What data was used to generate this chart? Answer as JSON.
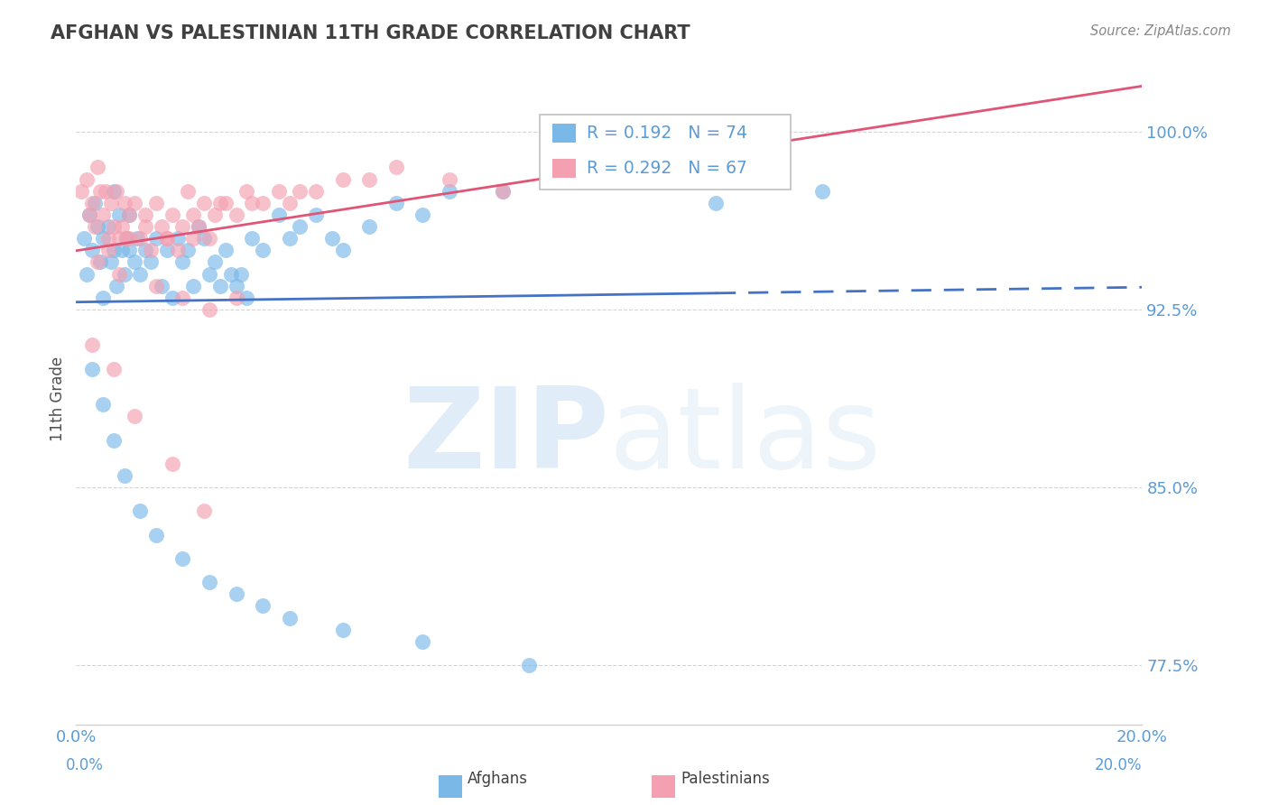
{
  "title": "AFGHAN VS PALESTINIAN 11TH GRADE CORRELATION CHART",
  "source_text": "Source: ZipAtlas.com",
  "ylabel": "11th Grade",
  "watermark_zip": "ZIP",
  "watermark_atlas": "atlas",
  "xlim": [
    0.0,
    20.0
  ],
  "ylim": [
    75.0,
    102.5
  ],
  "yticks": [
    77.5,
    85.0,
    92.5,
    100.0
  ],
  "ytick_labels": [
    "77.5%",
    "85.0%",
    "92.5%",
    "100.0%"
  ],
  "xticks": [
    0.0,
    5.0,
    10.0,
    15.0,
    20.0
  ],
  "xtick_labels": [
    "0.0%",
    "",
    "",
    "",
    "20.0%"
  ],
  "afghan_color": "#7ab8e8",
  "palestinian_color": "#f4a0b0",
  "afghan_line_color": "#4472c4",
  "palestinian_line_color": "#e05575",
  "afghan_R": 0.192,
  "afghan_N": 74,
  "palestinian_R": 0.292,
  "palestinian_N": 67,
  "title_color": "#404040",
  "axis_label_color": "#5b9bd5",
  "grid_color": "#d0d0d0",
  "legend_border_color": "#c0c0c0",
  "afghan_scatter_x": [
    0.15,
    0.2,
    0.25,
    0.3,
    0.35,
    0.4,
    0.45,
    0.5,
    0.5,
    0.6,
    0.65,
    0.7,
    0.7,
    0.75,
    0.8,
    0.85,
    0.9,
    0.95,
    1.0,
    1.0,
    1.1,
    1.15,
    1.2,
    1.3,
    1.4,
    1.5,
    1.6,
    1.7,
    1.8,
    1.9,
    2.0,
    2.1,
    2.2,
    2.3,
    2.4,
    2.5,
    2.6,
    2.7,
    2.8,
    2.9,
    3.0,
    3.1,
    3.2,
    3.3,
    3.5,
    3.8,
    4.0,
    4.2,
    4.5,
    4.8,
    5.0,
    5.5,
    6.0,
    6.5,
    7.0,
    8.0,
    9.0,
    10.0,
    12.0,
    14.0,
    0.3,
    0.5,
    0.7,
    0.9,
    1.2,
    1.5,
    2.0,
    2.5,
    3.0,
    3.5,
    4.0,
    5.0,
    6.5,
    8.5
  ],
  "afghan_scatter_y": [
    95.5,
    94.0,
    96.5,
    95.0,
    97.0,
    96.0,
    94.5,
    95.5,
    93.0,
    96.0,
    94.5,
    97.5,
    95.0,
    93.5,
    96.5,
    95.0,
    94.0,
    95.5,
    95.0,
    96.5,
    94.5,
    95.5,
    94.0,
    95.0,
    94.5,
    95.5,
    93.5,
    95.0,
    93.0,
    95.5,
    94.5,
    95.0,
    93.5,
    96.0,
    95.5,
    94.0,
    94.5,
    93.5,
    95.0,
    94.0,
    93.5,
    94.0,
    93.0,
    95.5,
    95.0,
    96.5,
    95.5,
    96.0,
    96.5,
    95.5,
    95.0,
    96.0,
    97.0,
    96.5,
    97.5,
    97.5,
    98.0,
    98.5,
    97.0,
    97.5,
    90.0,
    88.5,
    87.0,
    85.5,
    84.0,
    83.0,
    82.0,
    81.0,
    80.5,
    80.0,
    79.5,
    79.0,
    78.5,
    77.5
  ],
  "palestinian_scatter_x": [
    0.1,
    0.2,
    0.25,
    0.3,
    0.35,
    0.4,
    0.45,
    0.5,
    0.55,
    0.6,
    0.65,
    0.7,
    0.75,
    0.8,
    0.85,
    0.9,
    0.95,
    1.0,
    1.1,
    1.2,
    1.3,
    1.4,
    1.5,
    1.6,
    1.7,
    1.8,
    1.9,
    2.0,
    2.1,
    2.2,
    2.3,
    2.4,
    2.5,
    2.6,
    2.8,
    3.0,
    3.2,
    3.5,
    3.8,
    4.0,
    4.5,
    5.0,
    0.4,
    0.6,
    0.8,
    1.0,
    1.3,
    1.7,
    2.2,
    2.7,
    3.3,
    4.2,
    5.5,
    6.0,
    7.0,
    8.0,
    9.0,
    10.0,
    1.5,
    2.0,
    2.5,
    3.0,
    0.3,
    0.7,
    1.1,
    1.8,
    2.4
  ],
  "palestinian_scatter_y": [
    97.5,
    98.0,
    96.5,
    97.0,
    96.0,
    98.5,
    97.5,
    96.5,
    97.5,
    95.0,
    97.0,
    96.0,
    97.5,
    95.5,
    96.0,
    97.0,
    95.5,
    96.5,
    97.0,
    95.5,
    96.5,
    95.0,
    97.0,
    96.0,
    95.5,
    96.5,
    95.0,
    96.0,
    97.5,
    95.5,
    96.0,
    97.0,
    95.5,
    96.5,
    97.0,
    96.5,
    97.5,
    97.0,
    97.5,
    97.0,
    97.5,
    98.0,
    94.5,
    95.5,
    94.0,
    95.5,
    96.0,
    95.5,
    96.5,
    97.0,
    97.0,
    97.5,
    98.0,
    98.5,
    98.0,
    97.5,
    98.0,
    98.5,
    93.5,
    93.0,
    92.5,
    93.0,
    91.0,
    90.0,
    88.0,
    86.0,
    84.0
  ]
}
